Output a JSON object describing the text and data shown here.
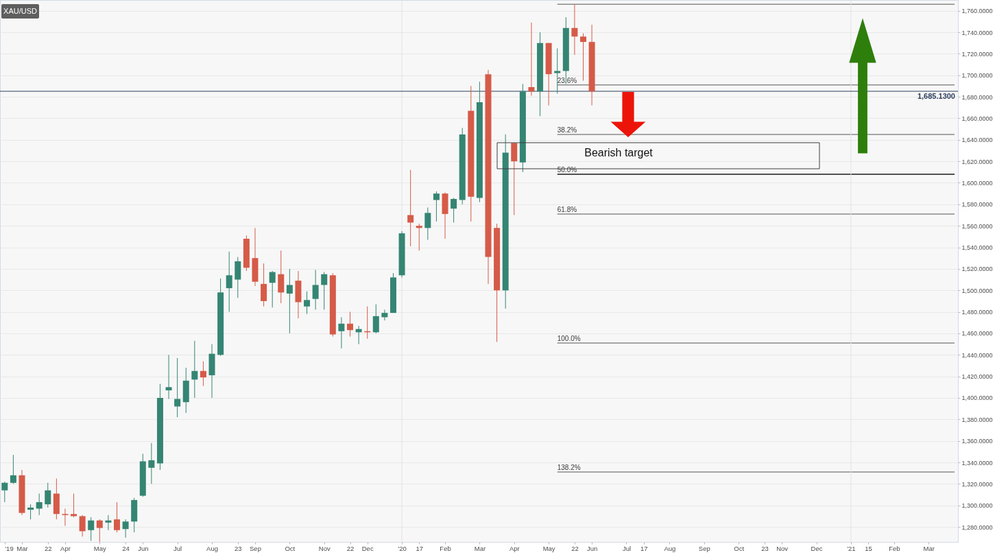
{
  "chart_data": {
    "type": "candlestick",
    "title": "XAU/USD",
    "series": [
      {
        "x": [
          "2019-02-15",
          "2019-02-22",
          "2019-03-01",
          "2019-03-08",
          "2019-03-15",
          "2019-03-22",
          "2019-03-29",
          "2019-04-05",
          "2019-04-12",
          "2019-04-19",
          "2019-04-26",
          "2019-05-03",
          "2019-05-10",
          "2019-05-17",
          "2019-05-24",
          "2019-05-31",
          "2019-06-07",
          "2019-06-14",
          "2019-06-21",
          "2019-06-28",
          "2019-07-05",
          "2019-07-12",
          "2019-07-19",
          "2019-07-26",
          "2019-08-02",
          "2019-08-09",
          "2019-08-16",
          "2019-08-23",
          "2019-08-30",
          "2019-09-06",
          "2019-09-13",
          "2019-09-20",
          "2019-09-27",
          "2019-10-04",
          "2019-10-11",
          "2019-10-18",
          "2019-10-25",
          "2019-11-01",
          "2019-11-08",
          "2019-11-15",
          "2019-11-22",
          "2019-11-29",
          "2019-12-06",
          "2019-12-13",
          "2019-12-20",
          "2019-12-27",
          "2020-01-03",
          "2020-01-10",
          "2020-01-17",
          "2020-01-24",
          "2020-01-31",
          "2020-02-07",
          "2020-02-14",
          "2020-02-21",
          "2020-02-28",
          "2020-03-06",
          "2020-03-13",
          "2020-03-20",
          "2020-03-27",
          "2020-04-03",
          "2020-04-10",
          "2020-04-17",
          "2020-04-24",
          "2020-05-01",
          "2020-05-08",
          "2020-05-15",
          "2020-05-22",
          "2020-05-29",
          "2020-06-05"
        ],
        "ohlc": [
          [
            1314,
            1322,
            1303,
            1321
          ],
          [
            1321,
            1347,
            1320,
            1328
          ],
          [
            1328,
            1333,
            1291,
            1293
          ],
          [
            1296,
            1301,
            1287,
            1298
          ],
          [
            1297,
            1311,
            1291,
            1303
          ],
          [
            1301,
            1321,
            1298,
            1314
          ],
          [
            1311,
            1325,
            1287,
            1292
          ],
          [
            1292,
            1297,
            1281,
            1291
          ],
          [
            1292,
            1311,
            1289,
            1290
          ],
          [
            1290,
            1291,
            1271,
            1276
          ],
          [
            1277,
            1289,
            1267,
            1286
          ],
          [
            1286,
            1287,
            1266,
            1279
          ],
          [
            1284,
            1291,
            1277,
            1286
          ],
          [
            1287,
            1303,
            1275,
            1277
          ],
          [
            1278,
            1287,
            1270,
            1285
          ],
          [
            1285,
            1307,
            1275,
            1305
          ],
          [
            1309,
            1348,
            1308,
            1341
          ],
          [
            1335,
            1358,
            1320,
            1342
          ],
          [
            1339,
            1413,
            1333,
            1400
          ],
          [
            1407,
            1440,
            1399,
            1410
          ],
          [
            1392,
            1437,
            1382,
            1399
          ],
          [
            1396,
            1428,
            1386,
            1416
          ],
          [
            1417,
            1453,
            1400,
            1425
          ],
          [
            1425,
            1434,
            1411,
            1419
          ],
          [
            1421,
            1450,
            1400,
            1441
          ],
          [
            1440,
            1511,
            1439,
            1498
          ],
          [
            1502,
            1536,
            1480,
            1514
          ],
          [
            1510,
            1531,
            1493,
            1527
          ],
          [
            1548,
            1551,
            1518,
            1521
          ],
          [
            1530,
            1558,
            1504,
            1508
          ],
          [
            1506,
            1525,
            1485,
            1490
          ],
          [
            1507,
            1518,
            1484,
            1517
          ],
          [
            1515,
            1537,
            1488,
            1498
          ],
          [
            1497,
            1520,
            1460,
            1505
          ],
          [
            1509,
            1518,
            1474,
            1489
          ],
          [
            1485,
            1499,
            1478,
            1491
          ],
          [
            1492,
            1519,
            1482,
            1505
          ],
          [
            1505,
            1517,
            1482,
            1515
          ],
          [
            1514,
            1516,
            1457,
            1459
          ],
          [
            1462,
            1475,
            1446,
            1469
          ],
          [
            1469,
            1480,
            1457,
            1463
          ],
          [
            1461,
            1467,
            1450,
            1464
          ],
          [
            1462,
            1485,
            1455,
            1461
          ],
          [
            1461,
            1487,
            1460,
            1476
          ],
          [
            1475,
            1482,
            1472,
            1479
          ],
          [
            1479,
            1516,
            1479,
            1512
          ],
          [
            1514,
            1555,
            1512,
            1553
          ],
          [
            1570,
            1612,
            1541,
            1563
          ],
          [
            1560,
            1562,
            1537,
            1558
          ],
          [
            1558,
            1577,
            1547,
            1572
          ],
          [
            1584,
            1592,
            1564,
            1590
          ],
          [
            1590,
            1591,
            1548,
            1571
          ],
          [
            1576,
            1586,
            1563,
            1585
          ],
          [
            1584,
            1651,
            1580,
            1645
          ],
          [
            1667,
            1690,
            1564,
            1587
          ],
          [
            1586,
            1694,
            1582,
            1675
          ],
          [
            1701,
            1705,
            1506,
            1531
          ],
          [
            1558,
            1562,
            1452,
            1500
          ],
          [
            1500,
            1645,
            1483,
            1628
          ],
          [
            1637,
            1637,
            1570,
            1620
          ],
          [
            1619,
            1692,
            1610,
            1685
          ],
          [
            1689,
            1749,
            1681,
            1685
          ],
          [
            1685,
            1740,
            1662,
            1730
          ],
          [
            1730,
            1730,
            1672,
            1701
          ],
          [
            1702,
            1725,
            1683,
            1704
          ],
          [
            1704,
            1754,
            1692,
            1744
          ],
          [
            1744,
            1766,
            1719,
            1736
          ],
          [
            1736,
            1739,
            1695,
            1731
          ],
          [
            1731,
            1747,
            1672,
            1685
          ]
        ],
        "colors": [
          "#358573",
          "#358573",
          "#d55b48",
          "#358573",
          "#358573",
          "#358573",
          "#d55b48",
          "#d55b48",
          "#d55b48",
          "#d55b48",
          "#358573",
          "#d55b48",
          "#358573",
          "#d55b48",
          "#358573",
          "#358573",
          "#358573",
          "#358573",
          "#358573",
          "#358573",
          "#358573",
          "#358573",
          "#358573",
          "#d55b48",
          "#358573",
          "#358573",
          "#358573",
          "#358573",
          "#d55b48",
          "#d55b48",
          "#d55b48",
          "#358573",
          "#d55b48",
          "#358573",
          "#d55b48",
          "#358573",
          "#358573",
          "#358573",
          "#d55b48",
          "#358573",
          "#d55b48",
          "#358573",
          "#d55b48",
          "#358573",
          "#358573",
          "#358573",
          "#358573",
          "#d55b48",
          "#d55b48",
          "#358573",
          "#358573",
          "#d55b48",
          "#358573",
          "#358573",
          "#d55b48",
          "#358573",
          "#d55b48",
          "#d55b48",
          "#358573",
          "#d55b48",
          "#358573",
          "#d55b48",
          "#358573",
          "#d55b48",
          "#358573",
          "#358573",
          "#d55b48",
          "#d55b48",
          "#d55b48"
        ]
      },
      {
        "type": "line",
        "x": [
          "2020-05-08",
          "2021-03-26"
        ],
        "values": [
          1766,
          1766
        ],
        "color": "#8a8a8a"
      },
      {
        "type": "line",
        "name": "23.6%",
        "x": [
          "2020-05-08",
          "2021-03-26"
        ],
        "values": [
          1691,
          1691
        ],
        "color": "#8a8a8a"
      },
      {
        "type": "line",
        "name": "38.2%",
        "x": [
          "2020-05-08",
          "2021-03-26"
        ],
        "values": [
          1645,
          1645
        ],
        "color": "#8a8a8a"
      },
      {
        "type": "line",
        "name": "50.0%",
        "x": [
          "2020-05-08",
          "2021-03-26"
        ],
        "values": [
          1608,
          1608
        ],
        "color": "#1a1a1a"
      },
      {
        "type": "line",
        "name": "61.8%",
        "x": [
          "2020-05-08",
          "2021-03-26"
        ],
        "values": [
          1571,
          1571
        ],
        "color": "#8a8a8a"
      },
      {
        "type": "line",
        "name": "100.0%",
        "x": [
          "2020-05-08",
          "2021-03-26"
        ],
        "values": [
          1451,
          1451
        ],
        "color": "#8a8a8a"
      },
      {
        "type": "line",
        "name": "138.2%",
        "x": [
          "2020-05-08",
          "2021-03-26"
        ],
        "values": [
          1331,
          1331
        ],
        "color": "#8a8a8a"
      }
    ],
    "xlim": [
      "2019-02-14",
      "2021-03-26"
    ],
    "xticks": [
      {
        "value": "2019-02-15",
        "label": "'19"
      },
      {
        "value": "2019-03-01",
        "label": "Mar"
      },
      {
        "value": "2019-03-22",
        "label": "22"
      },
      {
        "value": "2019-04-05",
        "label": "Apr"
      },
      {
        "value": "2019-05-03",
        "label": "May"
      },
      {
        "value": "2019-05-24",
        "label": "24"
      },
      {
        "value": "2019-06-07",
        "label": "Jun"
      },
      {
        "value": "2019-07-05",
        "label": "Jul"
      },
      {
        "value": "2019-08-02",
        "label": "Aug"
      },
      {
        "value": "2019-08-23",
        "label": "23"
      },
      {
        "value": "2019-09-06",
        "label": "Sep"
      },
      {
        "value": "2019-10-04",
        "label": "Oct"
      },
      {
        "value": "2019-11-01",
        "label": "Nov"
      },
      {
        "value": "2019-11-22",
        "label": "22"
      },
      {
        "value": "2019-12-06",
        "label": "Dec"
      },
      {
        "value": "2020-01-03",
        "label": "'20"
      },
      {
        "value": "2020-01-17",
        "label": "17"
      },
      {
        "value": "2020-02-07",
        "label": "Feb"
      },
      {
        "value": "2020-03-06",
        "label": "Mar"
      },
      {
        "value": "2020-04-03",
        "label": "Apr"
      },
      {
        "value": "2020-05-01",
        "label": "May"
      },
      {
        "value": "2020-05-22",
        "label": "22"
      },
      {
        "value": "2020-06-05",
        "label": "Jun"
      },
      {
        "value": "2020-07-03",
        "label": "Jul"
      },
      {
        "value": "2020-07-17",
        "label": "17"
      },
      {
        "value": "2020-08-07",
        "label": "Aug"
      },
      {
        "value": "2020-09-04",
        "label": "Sep"
      },
      {
        "value": "2020-10-02",
        "label": "Oct"
      },
      {
        "value": "2020-10-23",
        "label": "23"
      },
      {
        "value": "2020-11-06",
        "label": "Nov"
      },
      {
        "value": "2020-12-04",
        "label": "Dec"
      },
      {
        "value": "2021-01-01",
        "label": "'21"
      },
      {
        "value": "2021-01-15",
        "label": "15"
      },
      {
        "value": "2021-02-05",
        "label": "Feb"
      },
      {
        "value": "2021-03-05",
        "label": "Mar"
      }
    ],
    "ylim": [
      1266,
      1770
    ],
    "yticks": [
      {
        "value": 1280,
        "label": "1,280.0000"
      },
      {
        "value": 1300,
        "label": "1,300.0000"
      },
      {
        "value": 1320,
        "label": "1,320.0000"
      },
      {
        "value": 1340,
        "label": "1,340.0000"
      },
      {
        "value": 1360,
        "label": "1,360.0000"
      },
      {
        "value": 1380,
        "label": "1,380.0000"
      },
      {
        "value": 1400,
        "label": "1,400.0000"
      },
      {
        "value": 1420,
        "label": "1,420.0000"
      },
      {
        "value": 1440,
        "label": "1,440.0000"
      },
      {
        "value": 1460,
        "label": "1,460.0000"
      },
      {
        "value": 1480,
        "label": "1,480.0000"
      },
      {
        "value": 1500,
        "label": "1,500.0000"
      },
      {
        "value": 1520,
        "label": "1,520.0000"
      },
      {
        "value": 1540,
        "label": "1,540.0000"
      },
      {
        "value": 1560,
        "label": "1,560.0000"
      },
      {
        "value": 1580,
        "label": "1,580.0000"
      },
      {
        "value": 1600,
        "label": "1,600.0000"
      },
      {
        "value": 1620,
        "label": "1,620.0000"
      },
      {
        "value": 1640,
        "label": "1,640.0000"
      },
      {
        "value": 1660,
        "label": "1,660.0000"
      },
      {
        "value": 1680,
        "label": "1,680.0000"
      },
      {
        "value": 1700,
        "label": "1,700.0000"
      },
      {
        "value": 1720,
        "label": "1,720.0000"
      },
      {
        "value": 1740,
        "label": "1,740.0000"
      },
      {
        "value": 1760,
        "label": "1,760.0000"
      }
    ],
    "grid": "y",
    "ref_lines": [
      {
        "axis": "x",
        "value": "2020-01-03",
        "color": "#e2e2e2"
      },
      {
        "axis": "x",
        "value": "2021-01-01",
        "color": "#e2e2e2"
      },
      {
        "axis": "y",
        "value": 1685.13,
        "label": "1,685.1300",
        "color": "#2c3e5c"
      }
    ],
    "annotations": [
      "Bearish target"
    ]
  }
}
